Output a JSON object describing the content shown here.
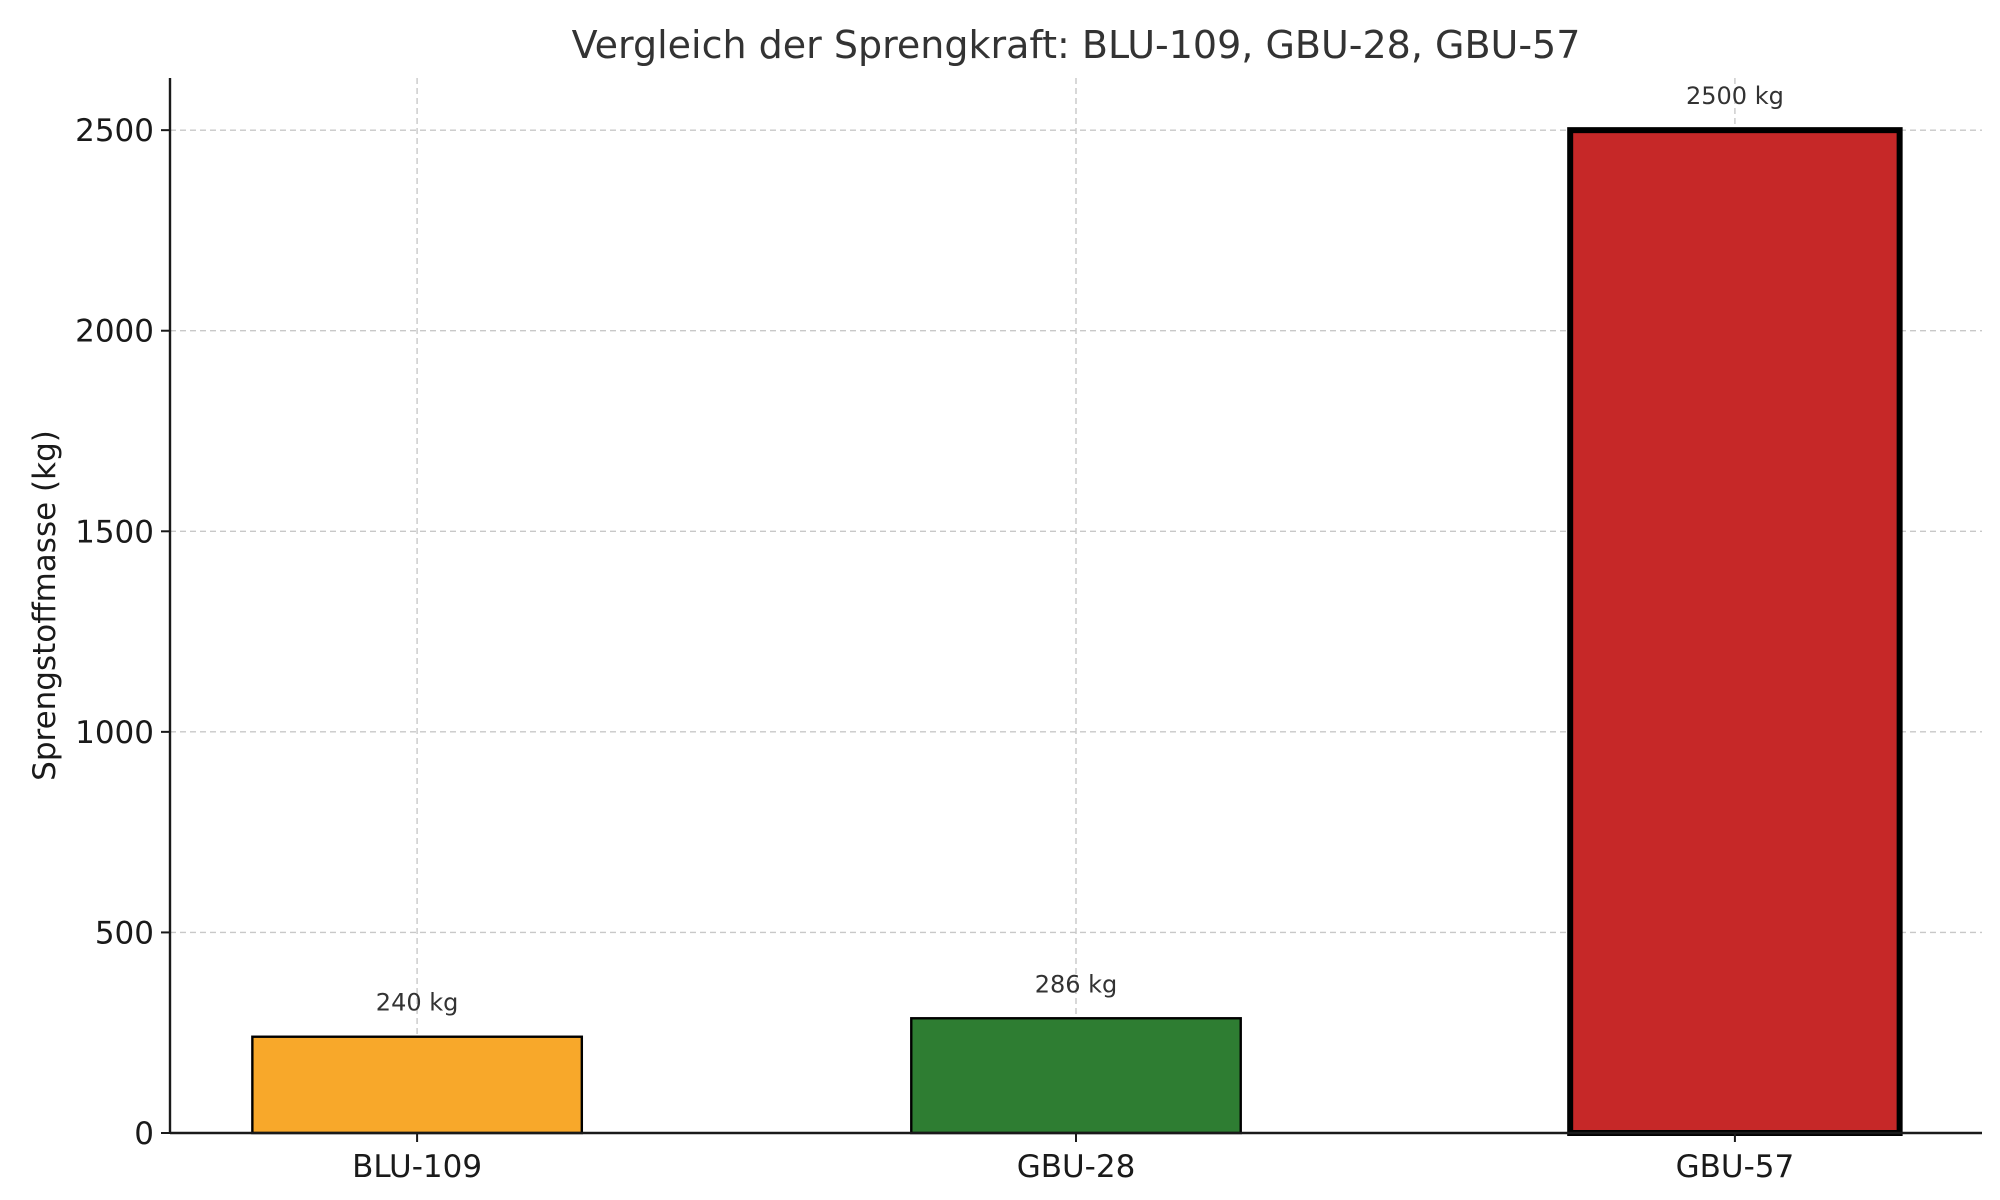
{
  "chart_data": {
    "type": "bar",
    "title": "Vergleich der Sprengkraft: BLU-109, GBU-28, GBU-57",
    "xlabel": "",
    "ylabel": "Sprengstoffmasse (kg)",
    "categories": [
      "BLU-109",
      "GBU-28",
      "GBU-57"
    ],
    "values": [
      240,
      286,
      2500
    ],
    "value_labels": [
      "240 kg",
      "286 kg",
      "2500 kg"
    ],
    "colors": [
      "#f8a82a",
      "#2e7d32",
      "#c62828"
    ],
    "edge_color": "#000000",
    "ylim": [
      0,
      2630
    ],
    "yticks": [
      0,
      500,
      1000,
      1500,
      2000,
      2500
    ],
    "grid": true,
    "legend": null
  }
}
